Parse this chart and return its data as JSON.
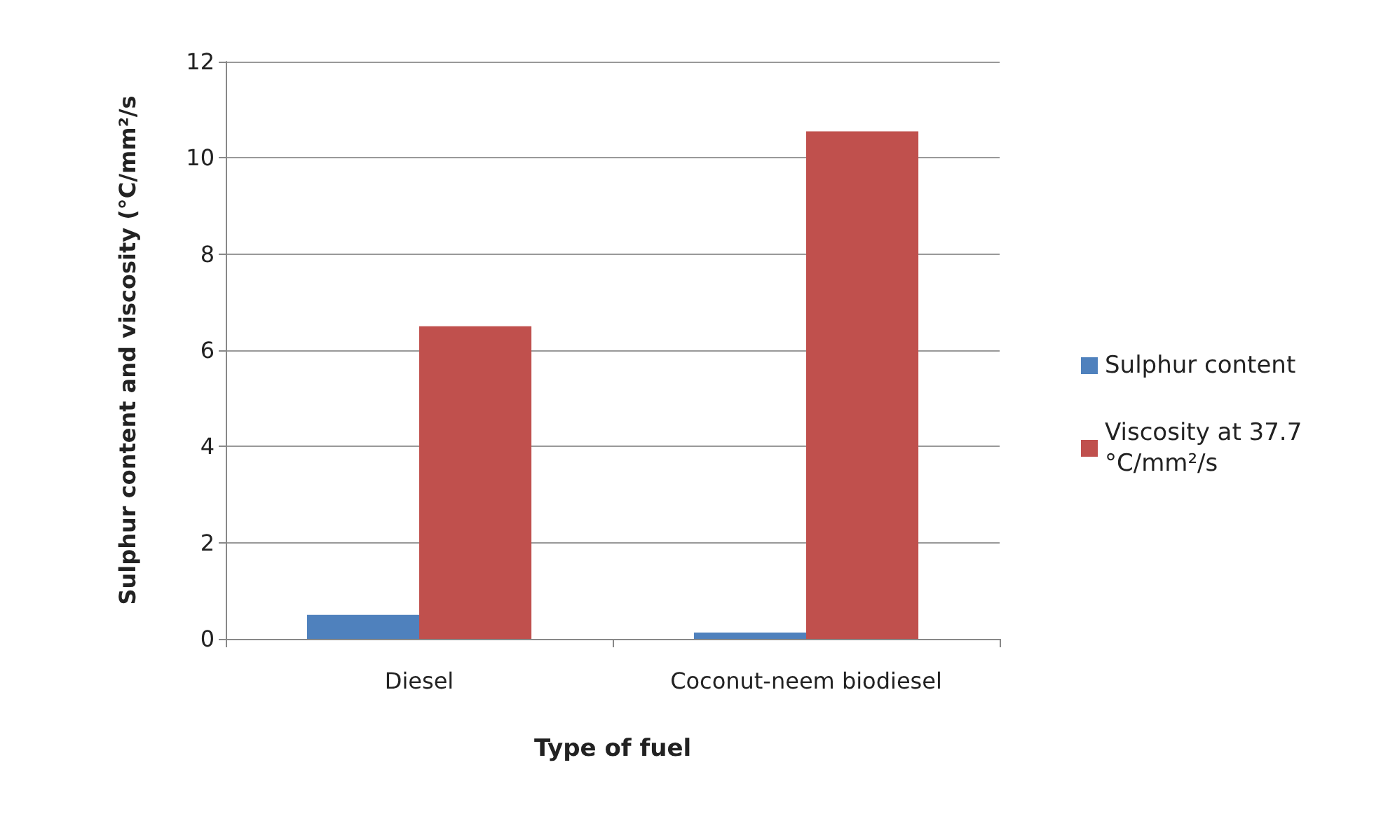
{
  "chart_data": {
    "type": "bar",
    "xlabel": "Type of fuel",
    "ylabel": "Sulphur content and viscosity (°C/mm²/s",
    "categories": [
      "Diesel",
      "Coconut-neem biodiesel"
    ],
    "series": [
      {
        "name": "Sulphur content",
        "color": "#4f81bd",
        "values": [
          0.5,
          0.13
        ]
      },
      {
        "name": "Viscosity at 37.7 °C/mm²/s",
        "color": "#c0504d",
        "values": [
          6.5,
          10.55
        ]
      }
    ],
    "ylim": [
      0,
      12
    ],
    "yticks": [
      0,
      2,
      4,
      6,
      8,
      10,
      12
    ],
    "grid": "y",
    "legend": "right"
  }
}
